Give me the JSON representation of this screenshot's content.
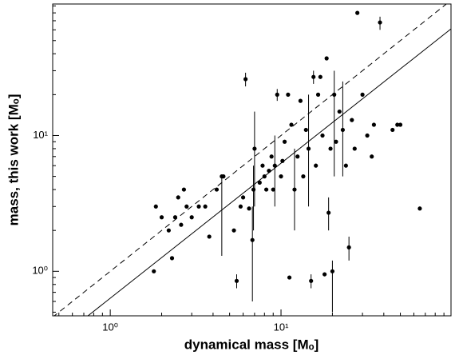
{
  "chart_data": {
    "type": "scatter",
    "xlabel": "dynamical mass [Mₒ]",
    "ylabel": "mass, this work [Mₒ]",
    "xscale": "log",
    "yscale": "log",
    "xlim": [
      0.46,
      99
    ],
    "ylim": [
      0.47,
      93
    ],
    "xticks": [
      {
        "value": 1,
        "label": "10⁰"
      },
      {
        "value": 10,
        "label": "10¹"
      }
    ],
    "yticks": [
      {
        "value": 1,
        "label": "10⁰"
      },
      {
        "value": 10,
        "label": "10¹"
      }
    ],
    "xminorticks": [
      0.5,
      0.6,
      0.7,
      0.8,
      0.9,
      2,
      3,
      4,
      5,
      6,
      7,
      8,
      9,
      20,
      30,
      40,
      50,
      60,
      70,
      80,
      90
    ],
    "yminorticks": [
      0.5,
      0.6,
      0.7,
      0.8,
      0.9,
      2,
      3,
      4,
      5,
      6,
      7,
      8,
      9,
      20,
      30,
      40,
      50,
      60,
      70,
      80,
      90
    ],
    "reference_lines": [
      {
        "style": "dashed",
        "x": [
          0.46,
          99
        ],
        "y": [
          0.46,
          99
        ]
      },
      {
        "style": "solid",
        "x": [
          0.74,
          99
        ],
        "y": [
          0.47,
          61
        ]
      }
    ],
    "series": [
      {
        "color": "#000000",
        "x": [
          1.8,
          1.85,
          2.0,
          2.2,
          2.3,
          2.4,
          2.5,
          2.6,
          2.7,
          2.8,
          3.0,
          3.3,
          3.6,
          3.8,
          4.2,
          4.5,
          4.6,
          5.5,
          5.3,
          5.8,
          6.0,
          6.2,
          6.5,
          6.8,
          6.9,
          7.0,
          7.5,
          7.8,
          8.0,
          8.2,
          8.5,
          8.8,
          9.0,
          9.2,
          9.5,
          10,
          10.2,
          10.5,
          11,
          11.2,
          11.5,
          12,
          12.5,
          13,
          13.5,
          14,
          14.5,
          15,
          15.5,
          16,
          16.5,
          17,
          17.5,
          18,
          18.5,
          19,
          19.5,
          20,
          20.5,
          21,
          22,
          23,
          24,
          25,
          26,
          27,
          28,
          30,
          32,
          34,
          35,
          38,
          45,
          48,
          50,
          65
        ],
        "values": [
          1.0,
          3.0,
          2.5,
          2.0,
          1.25,
          2.5,
          3.5,
          2.2,
          4.0,
          3.0,
          2.5,
          3.0,
          3.0,
          1.8,
          4.0,
          5.0,
          5.0,
          0.85,
          2.0,
          3.0,
          3.5,
          26,
          2.9,
          1.7,
          4.0,
          8.0,
          4.5,
          6.0,
          5.0,
          4.0,
          5.5,
          7.0,
          4.0,
          6.0,
          20,
          5.0,
          6.5,
          9.0,
          20,
          0.9,
          12,
          4.0,
          7.0,
          18,
          5.0,
          11,
          8.0,
          0.85,
          27,
          6.0,
          20,
          27,
          10,
          0.95,
          37,
          2.7,
          8.0,
          1.0,
          20,
          9.0,
          15,
          11,
          6.0,
          1.5,
          13,
          8.0,
          80,
          20,
          10,
          7.0,
          12,
          68,
          11,
          12,
          12,
          2.9
        ],
        "ylow": [
          null,
          null,
          null,
          null,
          null,
          null,
          null,
          null,
          null,
          null,
          null,
          null,
          null,
          null,
          null,
          1.3,
          null,
          0.75,
          null,
          null,
          null,
          23,
          null,
          0.6,
          2.0,
          3.0,
          null,
          null,
          null,
          null,
          null,
          null,
          null,
          3.0,
          18,
          null,
          null,
          null,
          null,
          null,
          null,
          2.0,
          null,
          null,
          null,
          null,
          3.0,
          0.75,
          24,
          null,
          null,
          null,
          null,
          null,
          null,
          2.0,
          null,
          0.5,
          5.0,
          null,
          null,
          5.0,
          null,
          1.2,
          null,
          null,
          null,
          null,
          null,
          null,
          null,
          60,
          null,
          null,
          null,
          null
        ],
        "yhigh": [
          null,
          null,
          null,
          null,
          null,
          null,
          null,
          null,
          null,
          null,
          null,
          null,
          null,
          null,
          null,
          5.0,
          null,
          0.95,
          null,
          null,
          null,
          29,
          null,
          3.0,
          6.0,
          15,
          null,
          null,
          null,
          null,
          null,
          null,
          null,
          10,
          22,
          null,
          null,
          null,
          null,
          null,
          null,
          8.0,
          null,
          null,
          null,
          null,
          20,
          0.95,
          30,
          null,
          null,
          null,
          null,
          null,
          null,
          3.5,
          null,
          1.2,
          30,
          null,
          null,
          25,
          null,
          1.8,
          null,
          null,
          null,
          null,
          null,
          null,
          null,
          75,
          null,
          null,
          null,
          null
        ]
      }
    ]
  }
}
